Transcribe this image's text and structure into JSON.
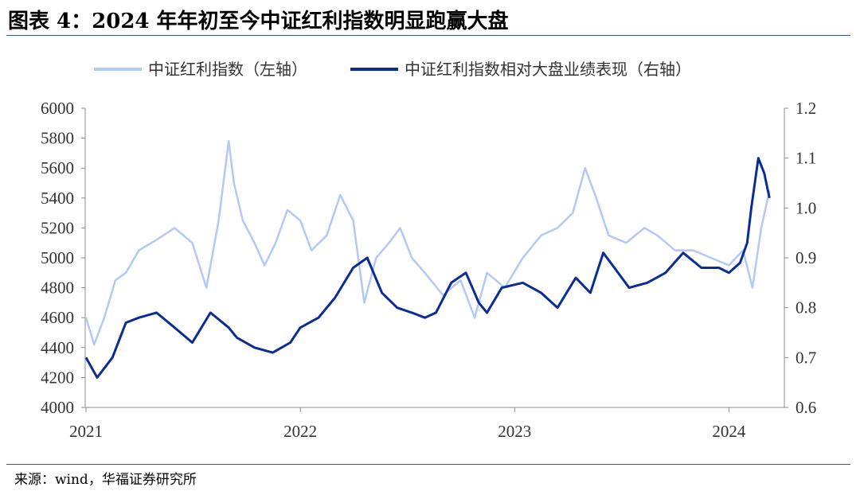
{
  "title": "图表 4：2024 年年初至今中证红利指数明显跑赢大盘",
  "source": "来源：wind，华福证券研究所",
  "colors": {
    "rule": "#2f55a4",
    "left_series": "#b3c9f5",
    "right_series": "#0b2c94",
    "axis": "#8c8c8c"
  },
  "chart_data": {
    "type": "line",
    "x_ticks": [
      "2021",
      "2022",
      "2023",
      "2024"
    ],
    "y_left": {
      "ticks": [
        "4000",
        "4200",
        "4400",
        "4600",
        "4800",
        "5000",
        "5200",
        "5400",
        "5600",
        "5800",
        "6000"
      ],
      "lim": [
        4000,
        6000
      ]
    },
    "y_right": {
      "ticks": [
        "0.6",
        "0.7",
        "0.8",
        "0.9",
        "1.0",
        "1.1",
        "1.2"
      ],
      "lim": [
        0.6,
        1.2
      ]
    },
    "series": [
      {
        "name": "中证红利指数（左轴）",
        "axis": "left",
        "x": [
          "2021-01-01",
          "2021-01-15",
          "2021-02-01",
          "2021-02-20",
          "2021-03-10",
          "2021-04-01",
          "2021-05-01",
          "2021-06-01",
          "2021-07-01",
          "2021-07-25",
          "2021-08-15",
          "2021-09-01",
          "2021-09-10",
          "2021-09-25",
          "2021-10-15",
          "2021-11-01",
          "2021-11-20",
          "2021-12-10",
          "2022-01-01",
          "2022-01-20",
          "2022-02-15",
          "2022-03-10",
          "2022-04-01",
          "2022-04-20",
          "2022-05-10",
          "2022-06-01",
          "2022-06-20",
          "2022-07-10",
          "2022-08-01",
          "2022-09-01",
          "2022-10-01",
          "2022-10-25",
          "2022-11-15",
          "2022-12-15",
          "2023-01-15",
          "2023-02-15",
          "2023-03-15",
          "2023-04-10",
          "2023-05-01",
          "2023-05-20",
          "2023-06-10",
          "2023-07-10",
          "2023-08-10",
          "2023-09-01",
          "2023-10-01",
          "2023-11-01",
          "2023-12-01",
          "2024-01-01",
          "2024-01-25",
          "2024-02-10",
          "2024-02-25",
          "2024-03-10"
        ],
        "values": [
          4600,
          4420,
          4600,
          4850,
          4900,
          5050,
          5120,
          5200,
          5100,
          4800,
          5250,
          5780,
          5500,
          5250,
          5100,
          4950,
          5100,
          5320,
          5250,
          5050,
          5150,
          5420,
          5250,
          4700,
          5000,
          5100,
          5200,
          5000,
          4900,
          4750,
          4850,
          4600,
          4900,
          4800,
          5000,
          5150,
          5200,
          5300,
          5600,
          5400,
          5150,
          5100,
          5200,
          5150,
          5050,
          5050,
          5000,
          4950,
          5050,
          4800,
          5200,
          5450
        ]
      },
      {
        "name": "中证红利指数相对大盘业绩表现（右轴）",
        "axis": "right",
        "x": [
          "2021-01-01",
          "2021-01-20",
          "2021-02-15",
          "2021-03-10",
          "2021-04-01",
          "2021-05-01",
          "2021-06-01",
          "2021-07-01",
          "2021-08-01",
          "2021-09-01",
          "2021-09-15",
          "2021-10-15",
          "2021-11-15",
          "2021-12-15",
          "2022-01-01",
          "2022-02-01",
          "2022-03-01",
          "2022-04-01",
          "2022-04-25",
          "2022-05-20",
          "2022-06-15",
          "2022-07-10",
          "2022-08-01",
          "2022-08-20",
          "2022-09-15",
          "2022-10-10",
          "2022-11-01",
          "2022-11-15",
          "2022-12-10",
          "2023-01-15",
          "2023-02-15",
          "2023-03-15",
          "2023-04-15",
          "2023-05-10",
          "2023-06-01",
          "2023-06-20",
          "2023-07-15",
          "2023-08-15",
          "2023-09-15",
          "2023-10-15",
          "2023-11-15",
          "2023-12-15",
          "2024-01-01",
          "2024-01-20",
          "2024-02-01",
          "2024-02-08",
          "2024-02-20",
          "2024-03-01",
          "2024-03-10"
        ],
        "values": [
          0.7,
          0.66,
          0.7,
          0.77,
          0.78,
          0.79,
          0.76,
          0.73,
          0.79,
          0.76,
          0.74,
          0.72,
          0.71,
          0.73,
          0.76,
          0.78,
          0.82,
          0.88,
          0.9,
          0.83,
          0.8,
          0.79,
          0.78,
          0.79,
          0.85,
          0.87,
          0.81,
          0.79,
          0.84,
          0.85,
          0.83,
          0.8,
          0.86,
          0.83,
          0.91,
          0.88,
          0.84,
          0.85,
          0.87,
          0.91,
          0.88,
          0.88,
          0.87,
          0.89,
          0.93,
          1.0,
          1.1,
          1.07,
          1.02
        ]
      }
    ]
  }
}
